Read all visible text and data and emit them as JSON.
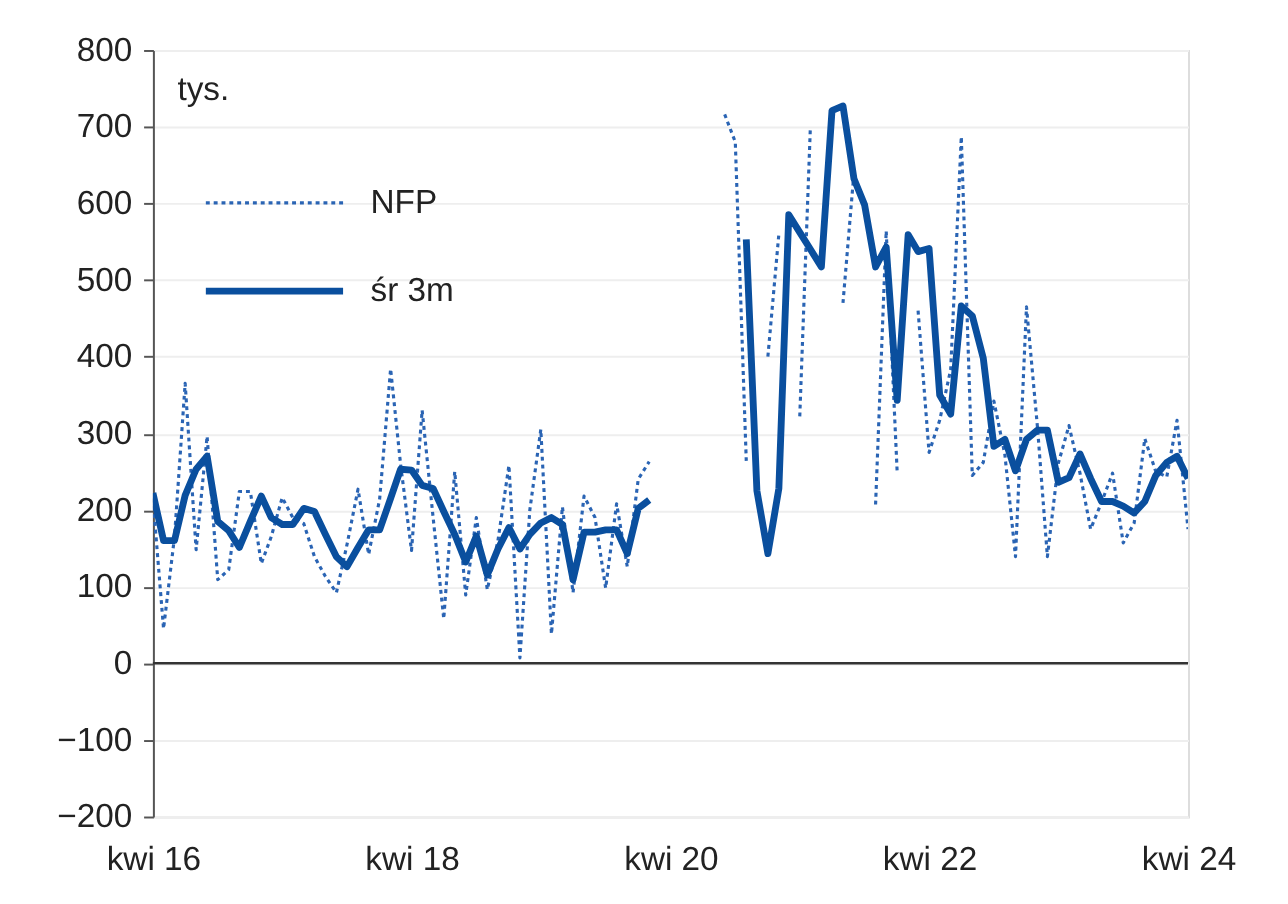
{
  "chart_data": {
    "type": "line",
    "ylabel": "tys.",
    "x": [
      "2016-04",
      "2016-05",
      "2016-06",
      "2016-07",
      "2016-08",
      "2016-09",
      "2016-10",
      "2016-11",
      "2016-12",
      "2017-01",
      "2017-02",
      "2017-03",
      "2017-04",
      "2017-05",
      "2017-06",
      "2017-07",
      "2017-08",
      "2017-09",
      "2017-10",
      "2017-11",
      "2017-12",
      "2018-01",
      "2018-02",
      "2018-03",
      "2018-04",
      "2018-05",
      "2018-06",
      "2018-07",
      "2018-08",
      "2018-09",
      "2018-10",
      "2018-11",
      "2018-12",
      "2019-01",
      "2019-02",
      "2019-03",
      "2019-04",
      "2019-05",
      "2019-06",
      "2019-07",
      "2019-08",
      "2019-09",
      "2019-10",
      "2019-11",
      "2019-12",
      "2020-01",
      "2020-02",
      "2020-03",
      "2020-04",
      "2020-05",
      "2020-06",
      "2020-07",
      "2020-08",
      "2020-09",
      "2020-10",
      "2020-11",
      "2020-12",
      "2021-01",
      "2021-02",
      "2021-03",
      "2021-04",
      "2021-05",
      "2021-06",
      "2021-07",
      "2021-08",
      "2021-09",
      "2021-10",
      "2021-11",
      "2021-12",
      "2022-01",
      "2022-02",
      "2022-03",
      "2022-04",
      "2022-05",
      "2022-06",
      "2022-07",
      "2022-08",
      "2022-09",
      "2022-10",
      "2022-11",
      "2022-12",
      "2023-01",
      "2023-02",
      "2023-03",
      "2023-04",
      "2023-05",
      "2023-06",
      "2023-07",
      "2023-08",
      "2023-09",
      "2023-10",
      "2023-11",
      "2023-12",
      "2024-01",
      "2024-02",
      "2024-03",
      "2024-04"
    ],
    "series": [
      {
        "name": "NFP",
        "type": "line",
        "line_style": "dotted",
        "color": "#2a64b4",
        "values": [
          215,
          45,
          165,
          365,
          148,
          296,
          109,
          122,
          224,
          224,
          130,
          165,
          216,
          190,
          182,
          139,
          113,
          92,
          155,
          227,
          142,
          214,
          384,
          260,
          147,
          330,
          190,
          58,
          250,
          89,
          190,
          96,
          160,
          258,
          7,
          200,
          305,
          38,
          204,
          92,
          218,
          190,
          98,
          208,
          126,
          240,
          263,
          null,
          null,
          null,
          null,
          null,
          null,
          716,
          680,
          264,
          null,
          400,
          560,
          null,
          322,
          700,
          null,
          null,
          470,
          640,
          null,
          207,
          564,
          249,
          null,
          460,
          275,
          317,
          383,
          687,
          245,
          262,
          342,
          272,
          139,
          465,
          308,
          139,
          261,
          310,
          248,
          175,
          210,
          248,
          157,
          183,
          293,
          250,
          243,
          317,
          175
        ]
      },
      {
        "name": "śr 3m",
        "type": "line",
        "line_style": "solid",
        "color": "#0a4f9e",
        "values": [
          222,
          160,
          160,
          219,
          253,
          270,
          185,
          173,
          151,
          185,
          218,
          190,
          181,
          181,
          202,
          198,
          168,
          139,
          126,
          151,
          174,
          174,
          215,
          253,
          252,
          232,
          228,
          198,
          168,
          132,
          166,
          115,
          149,
          177,
          149,
          168,
          183,
          190,
          181,
          109,
          171,
          171,
          174,
          174,
          143,
          202,
          213,
          null,
          null,
          null,
          null,
          null,
          null,
          null,
          null,
          553,
          225,
          143,
          228,
          585,
          562,
          540,
          517,
          721,
          727,
          632,
          598,
          517,
          543,
          343,
          559,
          537,
          541,
          350,
          325,
          466,
          453,
          398,
          283,
          292,
          251,
          292,
          304,
          304,
          236,
          242,
          273,
          241,
          211,
          211,
          205,
          196,
          211,
          245,
          262,
          270,
          241
        ]
      }
    ],
    "xlim": [
      "2016-04",
      "2024-04"
    ],
    "xticks": [
      {
        "value": "2016-04",
        "label": "kwi 16"
      },
      {
        "value": "2018-04",
        "label": "kwi 18"
      },
      {
        "value": "2020-04",
        "label": "kwi 20"
      },
      {
        "value": "2022-04",
        "label": "kwi 22"
      },
      {
        "value": "2024-04",
        "label": "kwi 24"
      }
    ],
    "ylim": [
      -200,
      800
    ],
    "yticks": [
      -200,
      -100,
      0,
      100,
      200,
      300,
      400,
      500,
      600,
      700,
      800
    ],
    "ref_lines": [
      {
        "axis": "y",
        "value": 0,
        "color": "#333333"
      }
    ],
    "grid": "y",
    "legend": "top left"
  }
}
